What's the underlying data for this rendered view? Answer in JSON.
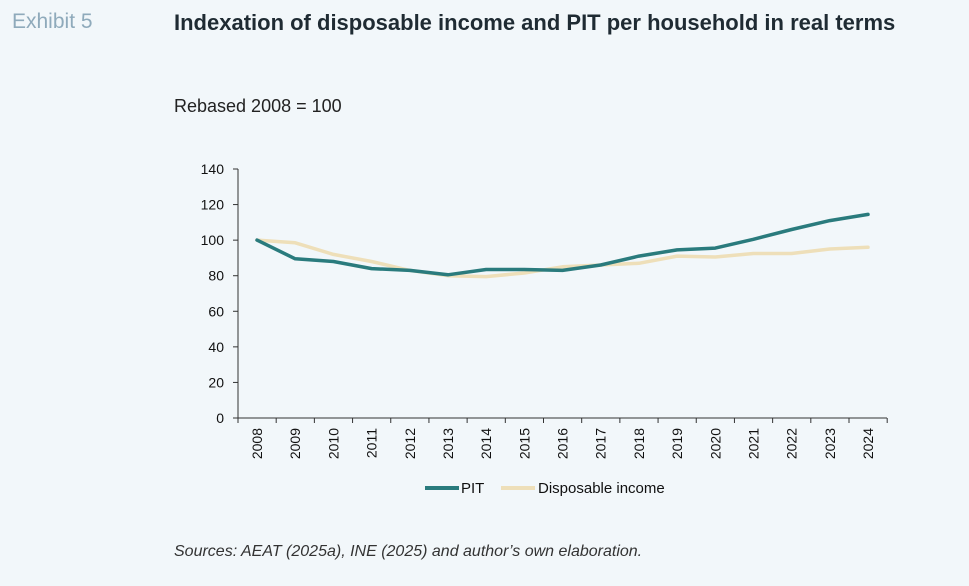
{
  "header": {
    "exhibit": "Exhibit 5",
    "title": "Indexation of disposable income and PIT per household in real terms",
    "subtitle": "Rebased 2008 = 100"
  },
  "footer": {
    "sources": "Sources: AEAT (2025a), INE (2025) and author’s own elaboration."
  },
  "colors": {
    "background": "#f2f7fa",
    "pit": "#2a7b7d",
    "disposable_income": "#eedfb9"
  },
  "chart_data": {
    "type": "line",
    "title": "Indexation of disposable income and PIT per household in real terms",
    "subtitle": "Rebased 2008 = 100",
    "xlabel": "",
    "ylabel": "",
    "ylim": [
      0,
      140
    ],
    "yticks": [
      0,
      20,
      40,
      60,
      80,
      100,
      120,
      140
    ],
    "grid": false,
    "legend_position": "bottom-center",
    "categories": [
      "2008",
      "2009",
      "2010",
      "2011",
      "2012",
      "2013",
      "2014",
      "2015",
      "2016",
      "2017",
      "2018",
      "2019",
      "2020",
      "2021",
      "2022",
      "2023",
      "2024"
    ],
    "series": [
      {
        "name": "PIT",
        "color": "#2a7b7d",
        "values": [
          100,
          89.5,
          88,
          84,
          83,
          80.5,
          83.5,
          83.5,
          83,
          86,
          91,
          94.5,
          95.5,
          100.5,
          106,
          111,
          114.5
        ]
      },
      {
        "name": "Disposable income",
        "color": "#eedfb9",
        "values": [
          100,
          98.5,
          92,
          88,
          83,
          80,
          79.5,
          81.5,
          85,
          86,
          87,
          91,
          90.5,
          92.5,
          92.5,
          95,
          96
        ]
      }
    ]
  }
}
